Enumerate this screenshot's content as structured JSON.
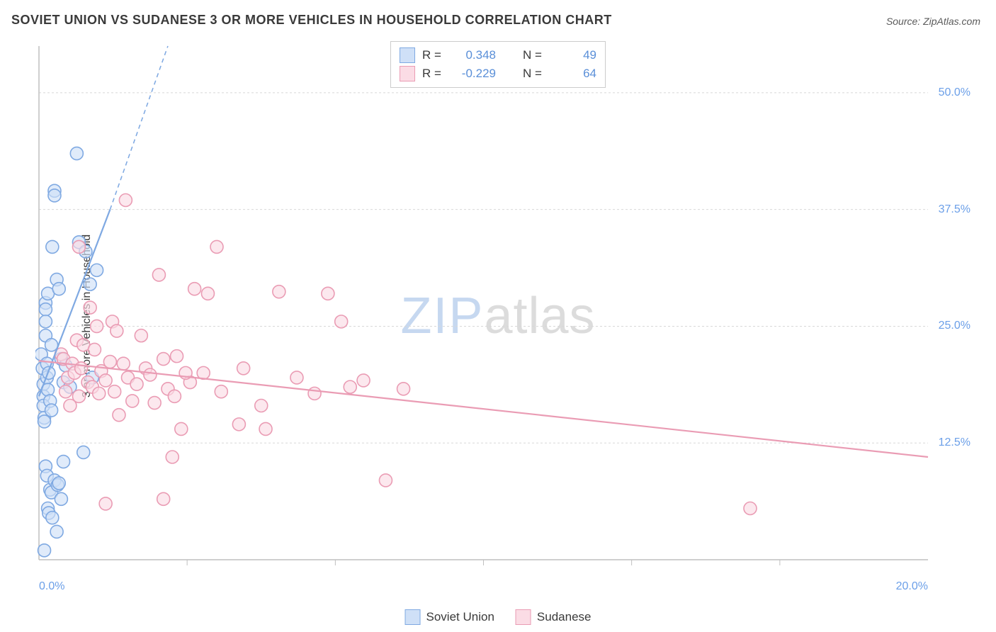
{
  "title": "SOVIET UNION VS SUDANESE 3 OR MORE VEHICLES IN HOUSEHOLD CORRELATION CHART",
  "source": "Source: ZipAtlas.com",
  "ylabel": "3 or more Vehicles in Household",
  "watermark": {
    "bold": "ZIP",
    "rest": "atlas"
  },
  "chart": {
    "type": "scatter",
    "xlim": [
      0,
      20
    ],
    "ylim": [
      0,
      55
    ],
    "ytick_step": 12.5,
    "yticks": [
      12.5,
      25.0,
      37.5,
      50.0
    ],
    "ytick_labels": [
      "12.5%",
      "25.0%",
      "37.5%",
      "50.0%"
    ],
    "xticks": [
      0,
      20
    ],
    "xtick_labels": [
      "0.0%",
      "20.0%"
    ],
    "xtick_minor": [
      3.333,
      6.667,
      10.0,
      13.333,
      16.667
    ],
    "background_color": "#ffffff",
    "grid_color": "#d8d8d8",
    "axis_color": "#bfbfbf",
    "marker_radius": 9,
    "marker_stroke_width": 1.6,
    "line_width": 2.2
  },
  "legend_top": {
    "rows": [
      {
        "swatch_fill": "#cfe0f7",
        "swatch_stroke": "#7fa9e2",
        "r_label": "R =",
        "r_value": "0.348",
        "n_label": "N =",
        "n_value": "49"
      },
      {
        "swatch_fill": "#fbdce5",
        "swatch_stroke": "#ea9cb4",
        "r_label": "R =",
        "r_value": "-0.229",
        "n_label": "N =",
        "n_value": "64"
      }
    ]
  },
  "legend_bottom": {
    "items": [
      {
        "swatch_fill": "#cfe0f7",
        "swatch_stroke": "#7fa9e2",
        "label": "Soviet Union"
      },
      {
        "swatch_fill": "#fbdce5",
        "swatch_stroke": "#ea9cb4",
        "label": "Sudanese"
      }
    ]
  },
  "series": [
    {
      "name": "Soviet Union",
      "color_fill": "#cfe0f7",
      "color_stroke": "#7fa9e2",
      "trend": {
        "x1": 0,
        "y1": 17.5,
        "x2": 1.6,
        "y2": 37.5,
        "extrap_x2": 2.9,
        "extrap_y2": 55,
        "dash": "6,5"
      },
      "points": [
        [
          0.05,
          22.0
        ],
        [
          0.08,
          20.5
        ],
        [
          0.1,
          18.8
        ],
        [
          0.1,
          17.5
        ],
        [
          0.1,
          16.5
        ],
        [
          0.12,
          15.2
        ],
        [
          0.12,
          14.8
        ],
        [
          0.15,
          27.5
        ],
        [
          0.15,
          26.8
        ],
        [
          0.15,
          25.5
        ],
        [
          0.15,
          24.0
        ],
        [
          0.18,
          21.0
        ],
        [
          0.18,
          19.5
        ],
        [
          0.2,
          18.2
        ],
        [
          0.2,
          28.5
        ],
        [
          0.22,
          20.0
        ],
        [
          0.25,
          17.0
        ],
        [
          0.28,
          16.0
        ],
        [
          0.28,
          23.0
        ],
        [
          0.3,
          33.5
        ],
        [
          0.35,
          39.5
        ],
        [
          0.35,
          39.0
        ],
        [
          0.4,
          30.0
        ],
        [
          0.45,
          29.0
        ],
        [
          0.5,
          21.5
        ],
        [
          0.55,
          19.0
        ],
        [
          0.6,
          20.8
        ],
        [
          0.7,
          18.5
        ],
        [
          0.85,
          43.5
        ],
        [
          0.9,
          34.0
        ],
        [
          1.0,
          11.5
        ],
        [
          1.05,
          33.0
        ],
        [
          1.15,
          29.5
        ],
        [
          1.2,
          19.5
        ],
        [
          1.3,
          31.0
        ],
        [
          0.15,
          10.0
        ],
        [
          0.18,
          9.0
        ],
        [
          0.2,
          5.5
        ],
        [
          0.22,
          5.0
        ],
        [
          0.25,
          7.5
        ],
        [
          0.28,
          7.2
        ],
        [
          0.3,
          4.5
        ],
        [
          0.35,
          8.5
        ],
        [
          0.4,
          3.0
        ],
        [
          0.42,
          8.0
        ],
        [
          0.45,
          8.2
        ],
        [
          0.5,
          6.5
        ],
        [
          0.55,
          10.5
        ],
        [
          0.12,
          1.0
        ]
      ]
    },
    {
      "name": "Sudanese",
      "color_fill": "#fbdce5",
      "color_stroke": "#ea9cb4",
      "trend": {
        "x1": 0,
        "y1": 21.3,
        "x2": 20,
        "y2": 11.0
      },
      "points": [
        [
          0.5,
          22.0
        ],
        [
          0.55,
          21.5
        ],
        [
          0.6,
          18.0
        ],
        [
          0.65,
          19.5
        ],
        [
          0.7,
          16.5
        ],
        [
          0.75,
          21.0
        ],
        [
          0.8,
          20.0
        ],
        [
          0.85,
          23.5
        ],
        [
          0.9,
          17.5
        ],
        [
          0.95,
          20.5
        ],
        [
          1.0,
          23.0
        ],
        [
          1.1,
          19.0
        ],
        [
          1.15,
          27.0
        ],
        [
          1.2,
          18.5
        ],
        [
          1.25,
          22.5
        ],
        [
          1.3,
          25.0
        ],
        [
          1.35,
          17.8
        ],
        [
          1.4,
          20.2
        ],
        [
          1.5,
          19.2
        ],
        [
          1.6,
          21.2
        ],
        [
          1.65,
          25.5
        ],
        [
          1.7,
          18.0
        ],
        [
          1.75,
          24.5
        ],
        [
          1.8,
          15.5
        ],
        [
          1.9,
          21.0
        ],
        [
          1.95,
          38.5
        ],
        [
          2.0,
          19.5
        ],
        [
          2.1,
          17.0
        ],
        [
          2.2,
          18.8
        ],
        [
          2.3,
          24.0
        ],
        [
          2.4,
          20.5
        ],
        [
          2.5,
          19.8
        ],
        [
          2.6,
          16.8
        ],
        [
          2.7,
          30.5
        ],
        [
          2.8,
          21.5
        ],
        [
          2.9,
          18.3
        ],
        [
          3.0,
          11.0
        ],
        [
          3.05,
          17.5
        ],
        [
          3.1,
          21.8
        ],
        [
          3.2,
          14.0
        ],
        [
          3.4,
          19.0
        ],
        [
          3.5,
          29.0
        ],
        [
          3.7,
          20.0
        ],
        [
          3.8,
          28.5
        ],
        [
          4.0,
          33.5
        ],
        [
          4.1,
          18.0
        ],
        [
          4.5,
          14.5
        ],
        [
          4.6,
          20.5
        ],
        [
          5.0,
          16.5
        ],
        [
          5.1,
          14.0
        ],
        [
          5.4,
          28.7
        ],
        [
          5.8,
          19.5
        ],
        [
          6.2,
          17.8
        ],
        [
          6.5,
          28.5
        ],
        [
          6.8,
          25.5
        ],
        [
          7.0,
          18.5
        ],
        [
          7.3,
          19.2
        ],
        [
          7.8,
          8.5
        ],
        [
          8.2,
          18.3
        ],
        [
          1.5,
          6.0
        ],
        [
          2.8,
          6.5
        ],
        [
          0.9,
          33.5
        ],
        [
          16.0,
          5.5
        ],
        [
          3.3,
          20.0
        ]
      ]
    }
  ]
}
